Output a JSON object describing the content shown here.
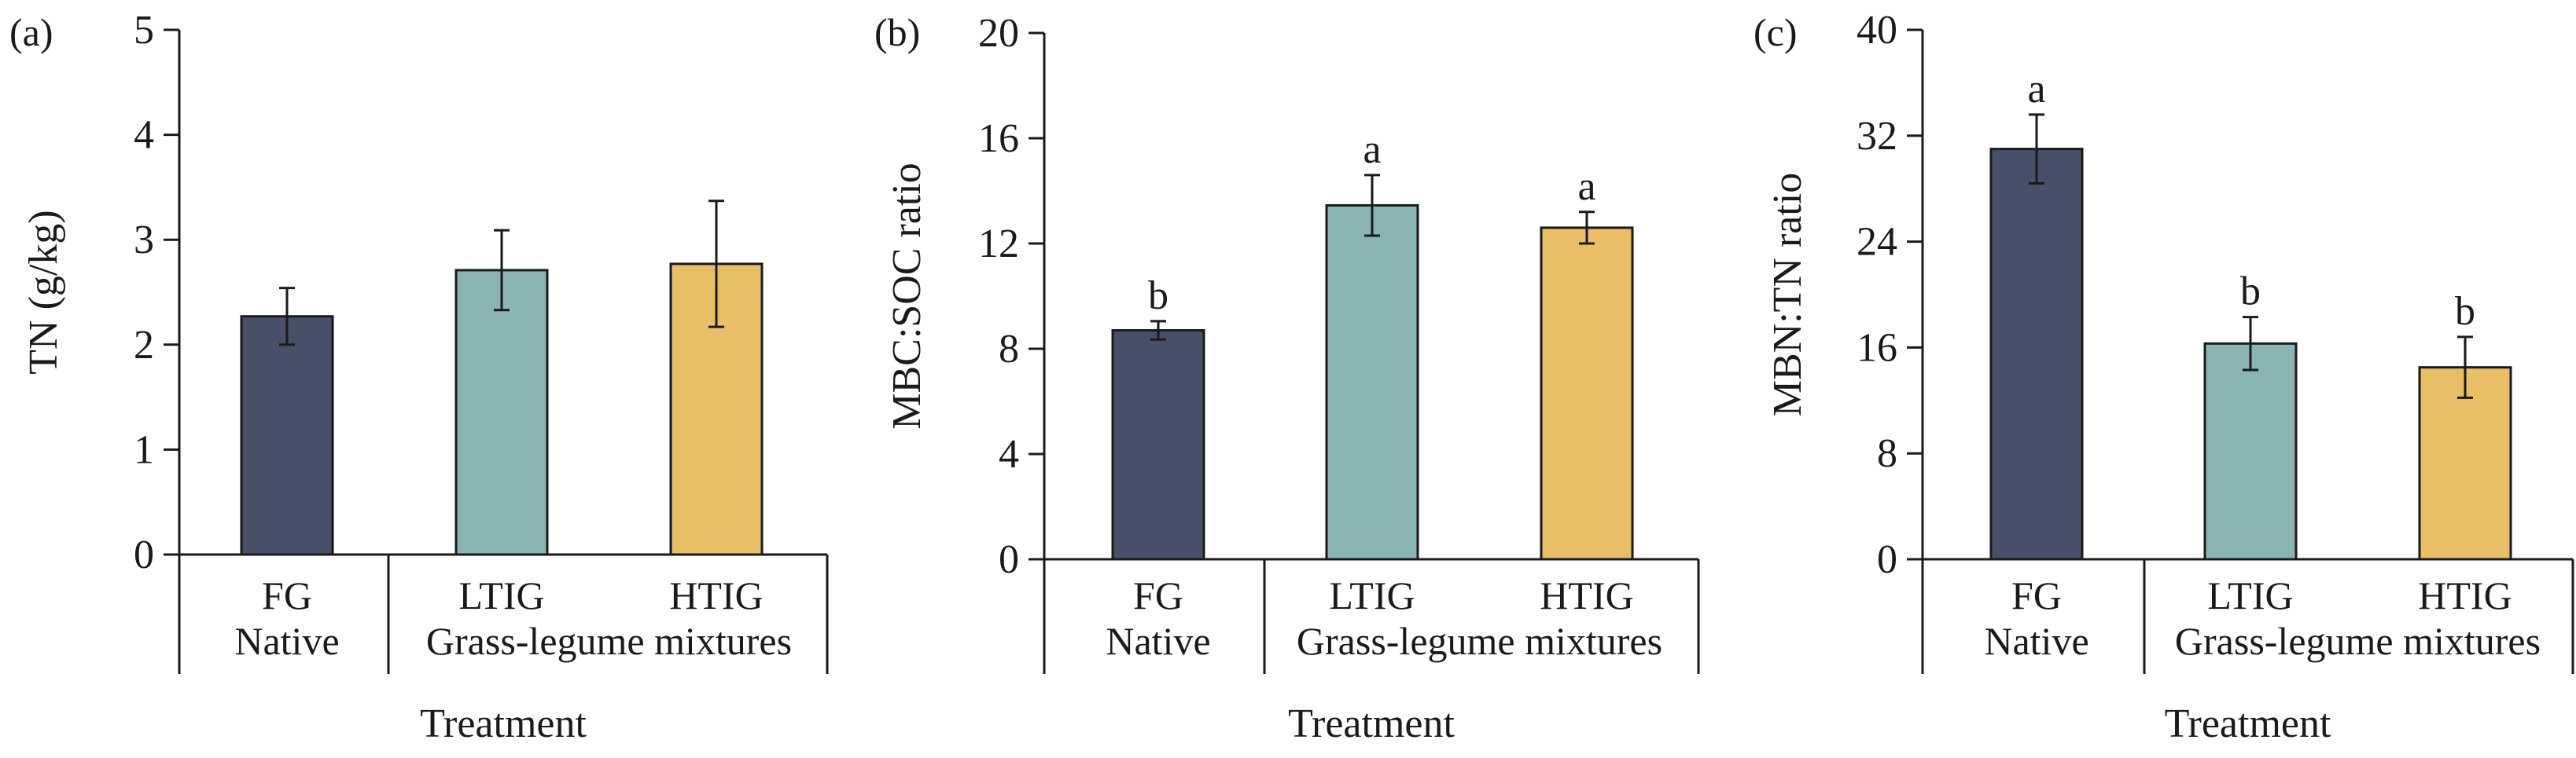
{
  "colors": {
    "FG": "#484f68",
    "LTIG": "#8ab4b4",
    "HTIG": "#e8bf66"
  },
  "chart_data": [
    {
      "type": "bar",
      "panel": "(a)",
      "ylabel": "TN (g/kg)",
      "xlabel": "Treatment",
      "ylim": [
        0,
        5
      ],
      "yticks": [
        "0",
        "1",
        "2",
        "3",
        "4",
        "5"
      ],
      "categories": [
        "FG",
        "LTIG",
        "HTIG"
      ],
      "groups": [
        "Native",
        "Grass-legume mixtures"
      ],
      "values": [
        2.27,
        2.71,
        2.77
      ],
      "errors": [
        0.27,
        0.38,
        0.6
      ],
      "significance": [
        "",
        "",
        ""
      ]
    },
    {
      "type": "bar",
      "panel": "(b)",
      "ylabel": "MBC:SOC ratio",
      "xlabel": "Treatment",
      "ylim": [
        0,
        20
      ],
      "yticks": [
        "0",
        "4",
        "8",
        "12",
        "16",
        "20"
      ],
      "categories": [
        "FG",
        "LTIG",
        "HTIG"
      ],
      "groups": [
        "Native",
        "Grass-legume mixtures"
      ],
      "values": [
        8.7,
        13.45,
        12.6
      ],
      "errors": [
        0.35,
        1.15,
        0.6
      ],
      "significance": [
        "b",
        "a",
        "a"
      ]
    },
    {
      "type": "bar",
      "panel": "(c)",
      "ylabel": "MBN:TN ratio",
      "xlabel": "Treatment",
      "ylim": [
        0,
        40
      ],
      "yticks": [
        "0",
        "8",
        "16",
        "24",
        "32",
        "40"
      ],
      "categories": [
        "FG",
        "LTIG",
        "HTIG"
      ],
      "groups": [
        "Native",
        "Grass-legume mixtures"
      ],
      "values": [
        31.0,
        16.3,
        14.5
      ],
      "errors": [
        2.6,
        2.0,
        2.3
      ],
      "significance": [
        "a",
        "b",
        "b"
      ]
    }
  ]
}
